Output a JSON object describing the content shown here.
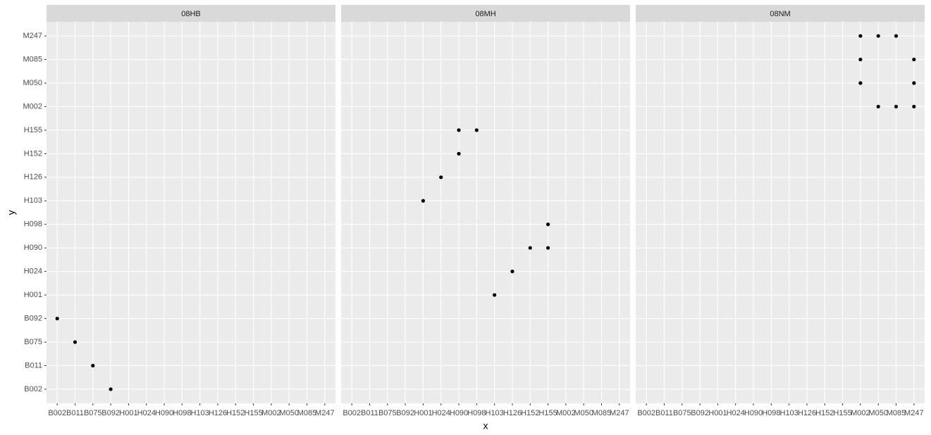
{
  "chart_data": [
    {
      "type": "scatter",
      "title": "08HB",
      "ylabel": "y",
      "xcategories": [
        "B002",
        "B011",
        "B075",
        "B092",
        "H001",
        "H024",
        "H090",
        "H098",
        "H103",
        "H126",
        "H152",
        "H155",
        "M002",
        "M050",
        "M085",
        "M247"
      ],
      "ycategories": [
        "B002",
        "B011",
        "B075",
        "B092",
        "H001",
        "H024",
        "H090",
        "H098",
        "H103",
        "H126",
        "H152",
        "H155",
        "M002",
        "M050",
        "M085",
        "M247"
      ],
      "x": [
        "B002",
        "B011",
        "B075",
        "B092"
      ],
      "y": [
        "B092",
        "B075",
        "B011",
        "B002"
      ],
      "color": "#000000",
      "grid": true
    },
    {
      "type": "scatter",
      "title": "08MH",
      "xlabel": "x",
      "xcategories": [
        "B002",
        "B011",
        "B075",
        "B092",
        "H001",
        "H024",
        "H090",
        "H098",
        "H103",
        "H126",
        "H152",
        "H155",
        "M002",
        "M050",
        "M085",
        "M247"
      ],
      "ycategories": [
        "B002",
        "B011",
        "B075",
        "B092",
        "H001",
        "H024",
        "H090",
        "H098",
        "H103",
        "H126",
        "H152",
        "H155",
        "M002",
        "M050",
        "M085",
        "M247"
      ],
      "x": [
        "H001",
        "H024",
        "H090",
        "H090",
        "H098",
        "H103",
        "H126",
        "H152",
        "H155",
        "H155"
      ],
      "y": [
        "H103",
        "H126",
        "H152",
        "H155",
        "H155",
        "H001",
        "H024",
        "H090",
        "H090",
        "H098"
      ],
      "color": "#000000",
      "grid": true
    },
    {
      "type": "scatter",
      "title": "08NM",
      "xcategories": [
        "B002",
        "B011",
        "B075",
        "B092",
        "H001",
        "H024",
        "H090",
        "H098",
        "H103",
        "H126",
        "H152",
        "H155",
        "M002",
        "M050",
        "M085",
        "M247"
      ],
      "ycategories": [
        "B002",
        "B011",
        "B075",
        "B092",
        "H001",
        "H024",
        "H090",
        "H098",
        "H103",
        "H126",
        "H152",
        "H155",
        "M002",
        "M050",
        "M085",
        "M247"
      ],
      "x": [
        "M002",
        "M002",
        "M002",
        "M050",
        "M050",
        "M085",
        "M085",
        "M247",
        "M247",
        "M247"
      ],
      "y": [
        "M247",
        "M085",
        "M050",
        "M247",
        "M002",
        "M247",
        "M002",
        "M085",
        "M050",
        "M002"
      ],
      "color": "#000000",
      "grid": true
    }
  ]
}
